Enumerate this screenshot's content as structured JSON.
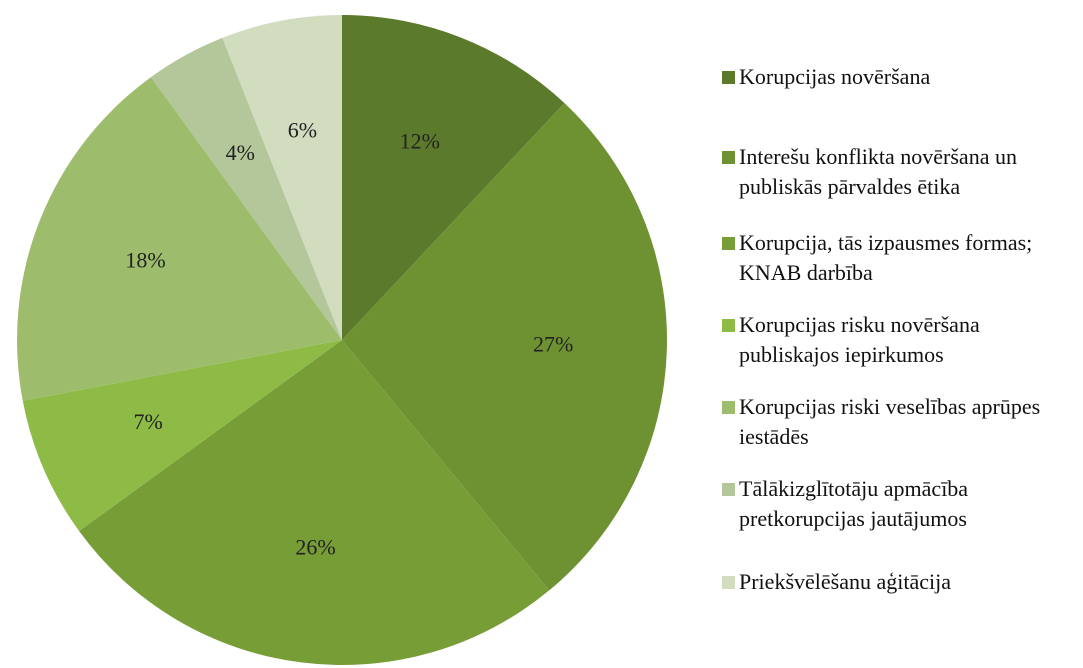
{
  "chart_data": {
    "type": "pie",
    "categories": [
      "Korupcijas novēršana",
      "Interešu konflikta novēršana un publiskās pārvaldes ētika",
      "Korupcija, tās izpausmes formas; KNAB darbība",
      "Korupcijas risku novēršana publiskajos iepirkumos",
      "Korupcijas riski veselības aprūpes iestādēs",
      "Tālākizglītotāju apmācība pretkorupcijas jautājumos",
      "Priekšvēlēšanu aģitācija"
    ],
    "values": [
      12,
      27,
      26,
      7,
      18,
      4,
      6
    ],
    "value_labels": [
      "12%",
      "27%",
      "26%",
      "7%",
      "18%",
      "4%",
      "6%"
    ],
    "colors": [
      "#5b7a2b",
      "#6e9232",
      "#779d37",
      "#8dbb46",
      "#9dbd6c",
      "#b3c79a",
      "#d2dcbf"
    ],
    "legend": "right"
  }
}
